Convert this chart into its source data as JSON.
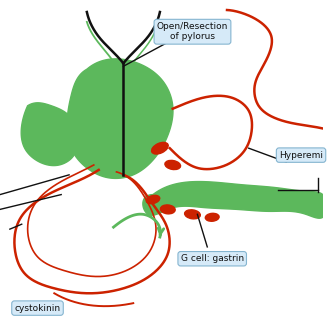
{
  "bg_color": "#ffffff",
  "green": "#5cb85c",
  "green2": "#6abf45",
  "red": "#cc2200",
  "black": "#111111",
  "lbox_face": "#d6eaf8",
  "lbox_edge": "#85b5d0",
  "figsize": [
    3.27,
    3.27
  ],
  "dpi": 100,
  "labels": {
    "pylorus": "Open/Resection\nof pylorus",
    "hyperemia": "Hyperemi",
    "gcell": "G cell: gastrin",
    "cystokinin": "cystokinin"
  }
}
